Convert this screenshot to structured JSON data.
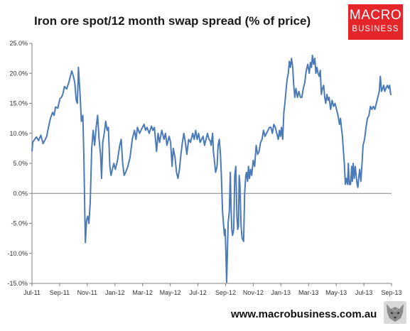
{
  "header": {
    "title": "Iron ore spot/12 month swap spread (% of price)"
  },
  "logo": {
    "line1": "MACRO",
    "line2": "BUSINESS",
    "color": "#e4252a"
  },
  "footer": {
    "url": "www.macrobusiness.com.au",
    "icon": "wolf-icon"
  },
  "chart_data": {
    "type": "line",
    "title": "Iron ore spot/12 month swap spread (% of price)",
    "xlabel": "",
    "ylabel": "",
    "ylim": [
      -15,
      25
    ],
    "y_ticks": [
      "-15.0%",
      "-10.0%",
      "-5.0%",
      "0.0%",
      "5.0%",
      "10.0%",
      "15.0%",
      "20.0%",
      "25.0%"
    ],
    "y_tick_values": [
      -15,
      -10,
      -5,
      0,
      5,
      10,
      15,
      20,
      25
    ],
    "x_ticks": [
      "Jul-11",
      "Sep-11",
      "Nov-11",
      "Jan-12",
      "Mar-12",
      "May-12",
      "Jul-12",
      "Sep-12",
      "Nov-12",
      "Jan-13",
      "Mar-13",
      "May-13",
      "Jul-13",
      "Sep-13"
    ],
    "x_unit": "months since Jul-11",
    "grid": false,
    "zero_line": true,
    "line_color": "#4a7ab8",
    "series": [
      {
        "values": [
          [
            0,
            7.0
          ],
          [
            0.05,
            8.5
          ],
          [
            0.15,
            8.9
          ],
          [
            0.3,
            9.4
          ],
          [
            0.45,
            8.8
          ],
          [
            0.6,
            9.7
          ],
          [
            0.75,
            8.3
          ],
          [
            0.9,
            9.0
          ],
          [
            1.0,
            9.5
          ],
          [
            1.1,
            10.8
          ],
          [
            1.25,
            12.5
          ],
          [
            1.4,
            13.5
          ],
          [
            1.5,
            13.0
          ],
          [
            1.6,
            14.4
          ],
          [
            1.75,
            14.2
          ],
          [
            1.9,
            15.8
          ],
          [
            2.0,
            16.0
          ],
          [
            2.1,
            16.6
          ],
          [
            2.2,
            17.8
          ],
          [
            2.35,
            17.4
          ],
          [
            2.5,
            18.5
          ],
          [
            2.6,
            19.5
          ],
          [
            2.7,
            20.4
          ],
          [
            2.8,
            19.6
          ],
          [
            2.9,
            18.5
          ],
          [
            3.0,
            15.5
          ],
          [
            3.08,
            15.0
          ],
          [
            3.15,
            21.0
          ],
          [
            3.25,
            17.0
          ],
          [
            3.35,
            12.0
          ],
          [
            3.45,
            13.0
          ],
          [
            3.52,
            6.0
          ],
          [
            3.58,
            -3.0
          ],
          [
            3.62,
            -8.2
          ],
          [
            3.7,
            -4.5
          ],
          [
            3.78,
            -3.8
          ],
          [
            3.86,
            -5.0
          ],
          [
            3.95,
            -1.5
          ],
          [
            4.05,
            7.5
          ],
          [
            4.15,
            10.5
          ],
          [
            4.25,
            8.0
          ],
          [
            4.35,
            11.0
          ],
          [
            4.45,
            13.0
          ],
          [
            4.55,
            9.0
          ],
          [
            4.65,
            6.5
          ],
          [
            4.72,
            2.5
          ],
          [
            4.8,
            8.5
          ],
          [
            4.9,
            10.0
          ],
          [
            5.0,
            12.0
          ],
          [
            5.1,
            10.5
          ],
          [
            5.18,
            11.0
          ],
          [
            5.28,
            4.5
          ],
          [
            5.36,
            3.0
          ],
          [
            5.45,
            4.0
          ],
          [
            5.55,
            5.0
          ],
          [
            5.65,
            4.0
          ],
          [
            5.8,
            5.5
          ],
          [
            5.95,
            8.0
          ],
          [
            6.05,
            9.0
          ],
          [
            6.15,
            5.0
          ],
          [
            6.25,
            3.0
          ],
          [
            6.35,
            3.5
          ],
          [
            6.5,
            4.5
          ],
          [
            6.65,
            6.0
          ],
          [
            6.8,
            9.0
          ],
          [
            6.95,
            10.5
          ],
          [
            7.05,
            9.0
          ],
          [
            7.15,
            11.0
          ],
          [
            7.3,
            10.0
          ],
          [
            7.45,
            10.8
          ],
          [
            7.6,
            11.5
          ],
          [
            7.7,
            10.5
          ],
          [
            7.8,
            11.0
          ],
          [
            7.95,
            10.0
          ],
          [
            8.1,
            11.2
          ],
          [
            8.2,
            10.5
          ],
          [
            8.3,
            11.0
          ],
          [
            8.45,
            7.0
          ],
          [
            8.55,
            10.0
          ],
          [
            8.65,
            8.5
          ],
          [
            8.8,
            10.5
          ],
          [
            8.95,
            9.0
          ],
          [
            9.05,
            10.0
          ],
          [
            9.15,
            8.0
          ],
          [
            9.3,
            9.5
          ],
          [
            9.4,
            8.5
          ],
          [
            9.5,
            4.5
          ],
          [
            9.58,
            7.5
          ],
          [
            9.7,
            6.0
          ],
          [
            9.8,
            3.5
          ],
          [
            9.9,
            2.5
          ],
          [
            10.0,
            4.0
          ],
          [
            10.1,
            6.5
          ],
          [
            10.2,
            8.5
          ],
          [
            10.3,
            10.0
          ],
          [
            10.4,
            8.5
          ],
          [
            10.5,
            6.5
          ],
          [
            10.62,
            9.0
          ],
          [
            10.75,
            8.5
          ],
          [
            10.9,
            10.0
          ],
          [
            11.0,
            9.0
          ],
          [
            11.1,
            10.5
          ],
          [
            11.2,
            9.0
          ],
          [
            11.3,
            10.0
          ],
          [
            11.4,
            8.5
          ],
          [
            11.5,
            9.0
          ],
          [
            11.6,
            9.5
          ],
          [
            11.7,
            8.0
          ],
          [
            11.8,
            9.0
          ],
          [
            11.9,
            10.0
          ],
          [
            12.0,
            9.0
          ],
          [
            12.08,
            8.8
          ],
          [
            12.15,
            8.0
          ],
          [
            12.25,
            10.0
          ],
          [
            12.3,
            7.0
          ],
          [
            12.35,
            6.0
          ],
          [
            12.45,
            3.5
          ],
          [
            12.55,
            4.5
          ],
          [
            12.62,
            8.0
          ],
          [
            12.7,
            9.0
          ],
          [
            12.78,
            6.5
          ],
          [
            12.85,
            2.5
          ],
          [
            12.92,
            -3.0
          ],
          [
            13.0,
            -5.5
          ],
          [
            13.05,
            -7.0
          ],
          [
            13.1,
            -6.0
          ],
          [
            13.15,
            -10.0
          ],
          [
            13.2,
            -14.8
          ],
          [
            13.25,
            -10.0
          ],
          [
            13.3,
            -5.0
          ],
          [
            13.38,
            -3.0
          ],
          [
            13.45,
            3.5
          ],
          [
            13.5,
            -2.5
          ],
          [
            13.55,
            -6.0
          ],
          [
            13.6,
            -7.0
          ],
          [
            13.68,
            -6.0
          ],
          [
            13.75,
            3.0
          ],
          [
            13.82,
            4.5
          ],
          [
            13.9,
            -4.0
          ],
          [
            13.95,
            -6.0
          ],
          [
            14.0,
            -5.5
          ],
          [
            14.05,
            3.0
          ],
          [
            14.1,
            1.5
          ],
          [
            14.18,
            -5.5
          ],
          [
            14.25,
            -7.5
          ],
          [
            14.35,
            -8.0
          ],
          [
            14.42,
            0.0
          ],
          [
            14.5,
            3.0
          ],
          [
            14.55,
            3.5
          ],
          [
            14.62,
            2.0
          ],
          [
            14.68,
            4.5
          ],
          [
            14.75,
            2.5
          ],
          [
            14.82,
            4.0
          ],
          [
            14.9,
            3.0
          ],
          [
            15.0,
            5.5
          ],
          [
            15.1,
            4.5
          ],
          [
            15.2,
            8.0
          ],
          [
            15.3,
            6.5
          ],
          [
            15.4,
            7.0
          ],
          [
            15.5,
            8.5
          ],
          [
            15.6,
            9.0
          ],
          [
            15.7,
            10.5
          ],
          [
            15.8,
            9.5
          ],
          [
            15.9,
            10.0
          ],
          [
            16.0,
            10.5
          ],
          [
            16.1,
            11.0
          ],
          [
            16.2,
            11.0
          ],
          [
            16.3,
            10.0
          ],
          [
            16.4,
            11.5
          ],
          [
            16.5,
            11.0
          ],
          [
            16.6,
            10.0
          ],
          [
            16.7,
            9.0
          ],
          [
            16.78,
            10.5
          ],
          [
            16.85,
            9.5
          ],
          [
            16.92,
            11.0
          ],
          [
            17.0,
            9.0
          ],
          [
            17.08,
            13.5
          ],
          [
            17.15,
            15.0
          ],
          [
            17.22,
            17.0
          ],
          [
            17.3,
            19.0
          ],
          [
            17.38,
            20.0
          ],
          [
            17.45,
            22.0
          ],
          [
            17.52,
            21.0
          ],
          [
            17.6,
            22.5
          ],
          [
            17.68,
            21.0
          ],
          [
            17.75,
            18.0
          ],
          [
            17.82,
            16.0
          ],
          [
            17.9,
            17.5
          ],
          [
            18.0,
            16.0
          ],
          [
            18.1,
            17.0
          ],
          [
            18.2,
            16.0
          ],
          [
            18.3,
            16.0
          ],
          [
            18.4,
            17.5
          ],
          [
            18.5,
            18.5
          ],
          [
            18.6,
            20.5
          ],
          [
            18.7,
            21.5
          ],
          [
            18.8,
            20.0
          ],
          [
            18.88,
            21.8
          ],
          [
            18.95,
            21.0
          ],
          [
            19.02,
            23.0
          ],
          [
            19.1,
            21.5
          ],
          [
            19.18,
            22.5
          ],
          [
            19.25,
            20.0
          ],
          [
            19.32,
            21.0
          ],
          [
            19.4,
            20.0
          ],
          [
            19.48,
            19.5
          ],
          [
            19.55,
            20.5
          ],
          [
            19.62,
            16.5
          ],
          [
            19.7,
            17.5
          ],
          [
            19.78,
            18.0
          ],
          [
            19.85,
            16.0
          ],
          [
            19.92,
            15.0
          ],
          [
            20.0,
            16.5
          ],
          [
            20.08,
            15.5
          ],
          [
            20.15,
            16.0
          ],
          [
            20.25,
            14.0
          ],
          [
            20.35,
            15.5
          ],
          [
            20.45,
            14.5
          ],
          [
            20.55,
            15.0
          ],
          [
            20.65,
            14.0
          ],
          [
            20.75,
            13.0
          ],
          [
            20.85,
            11.5
          ],
          [
            20.92,
            12.5
          ],
          [
            21.0,
            10.5
          ],
          [
            21.05,
            9.5
          ],
          [
            21.12,
            7.0
          ],
          [
            21.18,
            5.0
          ],
          [
            21.25,
            1.5
          ],
          [
            21.32,
            2.5
          ],
          [
            21.4,
            1.5
          ],
          [
            21.45,
            5.0
          ],
          [
            21.52,
            1.5
          ],
          [
            21.6,
            1.5
          ],
          [
            21.68,
            4.5
          ],
          [
            21.72,
            2.0
          ],
          [
            21.78,
            5.0
          ],
          [
            21.85,
            2.5
          ],
          [
            21.92,
            4.5
          ],
          [
            22.0,
            2.5
          ],
          [
            22.05,
            1.5
          ],
          [
            22.1,
            1.0
          ],
          [
            22.15,
            2.5
          ],
          [
            22.22,
            4.0
          ],
          [
            22.3,
            2.0
          ],
          [
            22.38,
            5.0
          ],
          [
            22.45,
            8.0
          ],
          [
            22.55,
            9.0
          ],
          [
            22.65,
            11.0
          ],
          [
            22.75,
            12.5
          ],
          [
            22.85,
            13.0
          ],
          [
            22.95,
            14.5
          ],
          [
            23.05,
            14.0
          ],
          [
            23.15,
            14.5
          ],
          [
            23.25,
            14.0
          ],
          [
            23.35,
            15.0
          ],
          [
            23.45,
            16.0
          ],
          [
            23.55,
            17.0
          ],
          [
            23.62,
            19.5
          ],
          [
            23.7,
            17.0
          ],
          [
            23.78,
            17.5
          ],
          [
            23.85,
            18.0
          ],
          [
            23.92,
            17.0
          ],
          [
            24.0,
            17.5
          ],
          [
            24.1,
            18.0
          ],
          [
            24.18,
            17.5
          ],
          [
            24.25,
            18.0
          ],
          [
            24.32,
            16.5
          ],
          [
            24.38,
            16.5
          ]
        ]
      }
    ]
  }
}
